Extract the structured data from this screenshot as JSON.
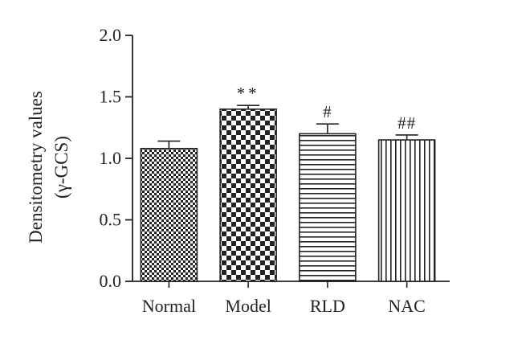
{
  "chart_data": {
    "type": "bar",
    "title": "",
    "xlabel": "",
    "ylabel_lines": [
      "Densitometry values",
      "(γ-GCS)"
    ],
    "categories": [
      "Normal",
      "Model",
      "RLD",
      "NAC"
    ],
    "values": [
      1.08,
      1.4,
      1.2,
      1.15
    ],
    "errors": [
      0.06,
      0.03,
      0.08,
      0.04
    ],
    "annotations": [
      "",
      "**",
      "#",
      "##"
    ],
    "fill_patterns": [
      "fine-checker",
      "coarse-checker",
      "horizontal-lines",
      "vertical-lines"
    ],
    "ylim": [
      0,
      2.0
    ],
    "yticks": [
      "0.0",
      "0.5",
      "1.0",
      "1.5",
      "2.0"
    ],
    "grid": false,
    "colors": {
      "ink": "#222222",
      "background": "#ffffff"
    }
  }
}
